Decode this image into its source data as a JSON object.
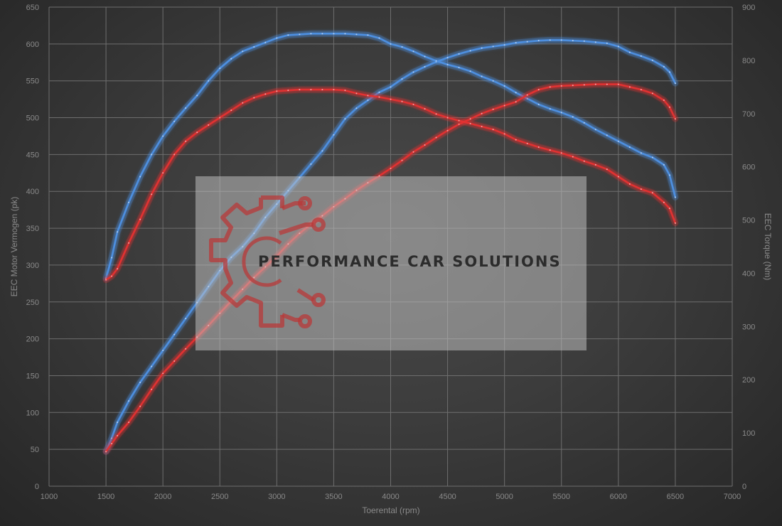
{
  "chart_data": {
    "type": "line",
    "xlabel": "Toerental (rpm)",
    "ylabel": "EEC Motor Vermogen (pk)",
    "y2label": "EEC Torque (Nm)",
    "xlim": [
      1000,
      7000
    ],
    "ylim": [
      0,
      650
    ],
    "y2lim": [
      0,
      900
    ],
    "x_ticks": [
      1000,
      1500,
      2000,
      2500,
      3000,
      3500,
      4000,
      4500,
      5000,
      5500,
      6000,
      6500,
      7000
    ],
    "y_ticks": [
      0,
      50,
      100,
      150,
      200,
      250,
      300,
      350,
      400,
      450,
      500,
      550,
      600,
      650
    ],
    "y2_ticks": [
      0,
      100,
      200,
      300,
      400,
      500,
      600,
      700,
      800,
      900
    ],
    "grid": true,
    "colors": {
      "tuned": "#4d8fe0",
      "stock": "#e03030"
    },
    "series": [
      {
        "axis": "right",
        "color": "#4d8fe0",
        "x": [
          1500,
          1550,
          1600,
          1700,
          1800,
          1900,
          2000,
          2100,
          2200,
          2300,
          2400,
          2500,
          2600,
          2700,
          2800,
          2900,
          3000,
          3100,
          3200,
          3300,
          3400,
          3500,
          3600,
          3700,
          3800,
          3900,
          4000,
          4100,
          4200,
          4300,
          4400,
          4500,
          4600,
          4700,
          4800,
          4900,
          5000,
          5100,
          5200,
          5300,
          5400,
          5500,
          5600,
          5700,
          5800,
          5900,
          6000,
          6100,
          6200,
          6300,
          6400,
          6450,
          6500
        ],
        "y": [
          65,
          90,
          120,
          160,
          195,
          225,
          255,
          285,
          315,
          345,
          375,
          405,
          430,
          450,
          475,
          505,
          530,
          555,
          580,
          605,
          630,
          660,
          690,
          710,
          725,
          740,
          750,
          765,
          778,
          788,
          797,
          805,
          812,
          818,
          823,
          826,
          829,
          833,
          835,
          837,
          838,
          838,
          837,
          836,
          834,
          832,
          826,
          815,
          808,
          800,
          788,
          778,
          757
        ]
      },
      {
        "axis": "left",
        "color": "#4d8fe0",
        "x": [
          1500,
          1550,
          1600,
          1700,
          1800,
          1900,
          2000,
          2100,
          2200,
          2300,
          2400,
          2500,
          2600,
          2700,
          2800,
          2900,
          3000,
          3100,
          3200,
          3300,
          3400,
          3500,
          3600,
          3700,
          3800,
          3900,
          4000,
          4100,
          4200,
          4300,
          4400,
          4500,
          4600,
          4700,
          4800,
          4900,
          5000,
          5100,
          5200,
          5300,
          5400,
          5500,
          5600,
          5700,
          5800,
          5900,
          6000,
          6100,
          6200,
          6300,
          6400,
          6450,
          6500
        ],
        "y": [
          282,
          310,
          345,
          385,
          420,
          450,
          475,
          495,
          513,
          530,
          550,
          567,
          580,
          590,
          596,
          602,
          608,
          612,
          613,
          614,
          614,
          614,
          614,
          613,
          612,
          608,
          600,
          596,
          590,
          583,
          577,
          572,
          568,
          563,
          556,
          550,
          543,
          534,
          526,
          518,
          512,
          507,
          501,
          493,
          484,
          476,
          468,
          460,
          452,
          446,
          436,
          422,
          392
        ]
      },
      {
        "axis": "right",
        "color": "#e03030",
        "x": [
          1500,
          1550,
          1600,
          1700,
          1800,
          1900,
          2000,
          2100,
          2200,
          2300,
          2400,
          2500,
          2600,
          2700,
          2800,
          2900,
          3000,
          3100,
          3200,
          3300,
          3400,
          3500,
          3600,
          3700,
          3800,
          3900,
          4000,
          4100,
          4200,
          4300,
          4400,
          4500,
          4600,
          4700,
          4800,
          4900,
          5000,
          5100,
          5200,
          5300,
          5400,
          5500,
          5600,
          5700,
          5800,
          5900,
          6000,
          6100,
          6200,
          6300,
          6400,
          6450,
          6500
        ],
        "y": [
          65,
          80,
          95,
          120,
          150,
          182,
          212,
          235,
          258,
          280,
          302,
          325,
          348,
          370,
          392,
          412,
          432,
          455,
          475,
          492,
          508,
          525,
          540,
          556,
          570,
          583,
          597,
          612,
          628,
          641,
          655,
          668,
          680,
          690,
          700,
          708,
          715,
          722,
          735,
          745,
          750,
          752,
          753,
          754,
          755,
          755,
          755,
          750,
          745,
          738,
          725,
          712,
          690
        ]
      },
      {
        "axis": "left",
        "color": "#e03030",
        "x": [
          1500,
          1550,
          1600,
          1700,
          1800,
          1900,
          2000,
          2100,
          2200,
          2300,
          2400,
          2500,
          2600,
          2700,
          2800,
          2900,
          3000,
          3100,
          3200,
          3300,
          3400,
          3500,
          3600,
          3700,
          3800,
          3900,
          4000,
          4100,
          4200,
          4300,
          4400,
          4500,
          4600,
          4700,
          4800,
          4900,
          5000,
          5100,
          5200,
          5300,
          5400,
          5500,
          5600,
          5700,
          5800,
          5900,
          6000,
          6100,
          6200,
          6300,
          6400,
          6450,
          6500
        ],
        "y": [
          280,
          285,
          295,
          330,
          362,
          396,
          425,
          450,
          468,
          480,
          490,
          500,
          510,
          520,
          527,
          532,
          536,
          537,
          538,
          538,
          538,
          538,
          537,
          533,
          530,
          528,
          525,
          522,
          518,
          512,
          505,
          500,
          496,
          492,
          488,
          484,
          478,
          470,
          465,
          460,
          456,
          452,
          447,
          441,
          436,
          430,
          420,
          410,
          403,
          398,
          385,
          377,
          357
        ]
      }
    ]
  },
  "watermark": {
    "text": "PERFORMANCE CAR SOLUTIONS",
    "logo_icon": "gear-circuit-logo"
  }
}
